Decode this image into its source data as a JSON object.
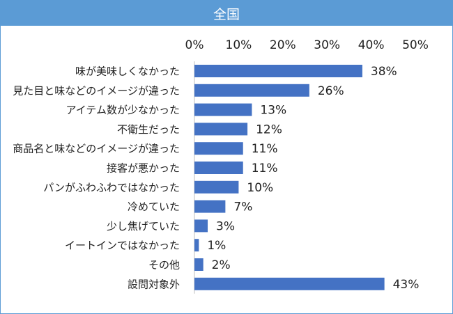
{
  "title": "全国",
  "chart_data": {
    "type": "bar",
    "orientation": "horizontal",
    "title": "全国",
    "categories": [
      "味が美味しくなかった",
      "見た目と味などのイメージが違った",
      "アイテム数が少なかった",
      "不衛生だった",
      "商品名と味などのイメージが違った",
      "接客が悪かった",
      "パンがふわふわではなかった",
      "冷めていた",
      "少し焦げていた",
      "イートインではなかった",
      "その他",
      "設問対象外"
    ],
    "values": [
      38,
      26,
      13,
      12,
      11,
      11,
      10,
      7,
      3,
      1,
      2,
      43
    ],
    "value_labels": [
      "38%",
      "26%",
      "13%",
      "12%",
      "11%",
      "11%",
      "10%",
      "7%",
      "3%",
      "1%",
      "2%",
      "43%"
    ],
    "xlim": [
      0,
      50
    ],
    "xticks": [
      0,
      10,
      20,
      30,
      40,
      50
    ],
    "xtick_labels": [
      "0%",
      "10%",
      "20%",
      "30%",
      "40%",
      "50%"
    ],
    "axis_position": "top",
    "grid": false,
    "legend": false,
    "bar_color": "#4472c4",
    "header_color": "#5b9bd5"
  }
}
